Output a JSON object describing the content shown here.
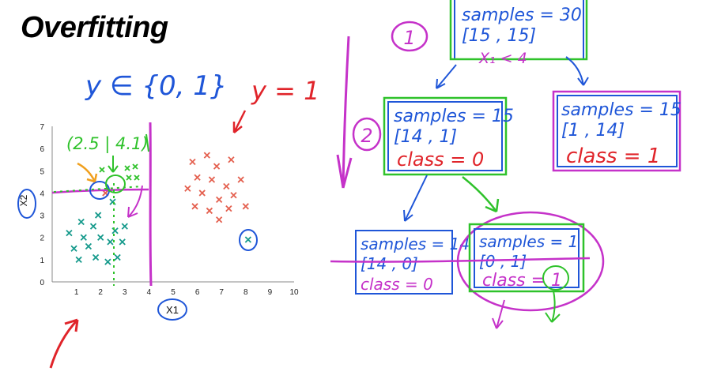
{
  "title": "Overfitting",
  "colors": {
    "blue": "#1f56d8",
    "green": "#2fc22b",
    "magenta": "#c532c9",
    "red": "#e0242a",
    "teal": "#169a8c",
    "salmon": "#e4604f",
    "orange": "#f0a01e"
  },
  "annotations": {
    "label_set": "y ∈ {0, 1}",
    "positive_label": "y = 1",
    "split_guess": "(2.5 | 4.1)",
    "step_one": "1",
    "step_two": "2",
    "split_feature": "X₁ < 4",
    "ax_x": "X1",
    "ax_y": "X2"
  },
  "tree": {
    "root": {
      "samples": "samples = 30",
      "counts": "[15 , 15]"
    },
    "left": {
      "samples": "samples = 15",
      "counts": "[14 , 1]",
      "class": "class = 0"
    },
    "right": {
      "samples": "samples = 15",
      "counts": "[1 , 14]",
      "class": "class = 1"
    },
    "leaf_left": {
      "samples": "samples = 14",
      "counts": "[14 , 0]",
      "class": "class = 0"
    },
    "leaf_right": {
      "samples": "samples = 1",
      "counts": "[0 , 1]",
      "class": "class = 1"
    }
  },
  "chart_data": {
    "type": "scatter",
    "xlim": [
      0,
      10
    ],
    "ylim": [
      0,
      7
    ],
    "xticks": [
      "1",
      "2",
      "3",
      "4",
      "5",
      "6",
      "7",
      "8",
      "9",
      "10"
    ],
    "yticks": [
      "0",
      "1",
      "2",
      "3",
      "4",
      "5",
      "6",
      "7"
    ],
    "series": [
      {
        "values": [
          [
            0.7,
            2.2
          ],
          [
            0.9,
            1.5
          ],
          [
            1.1,
            1.0
          ],
          [
            1.3,
            2.0
          ],
          [
            1.5,
            1.6
          ],
          [
            1.7,
            2.5
          ],
          [
            1.2,
            2.7
          ],
          [
            1.8,
            1.1
          ],
          [
            2.0,
            2.0
          ],
          [
            2.3,
            0.9
          ],
          [
            2.4,
            1.8
          ],
          [
            2.6,
            2.3
          ],
          [
            2.7,
            1.1
          ],
          [
            2.9,
            1.8
          ],
          [
            3.0,
            2.5
          ],
          [
            1.9,
            3.0
          ],
          [
            2.5,
            3.6
          ]
        ]
      },
      {
        "values": [
          [
            5.8,
            5.4
          ],
          [
            6.4,
            5.7
          ],
          [
            6.8,
            5.2
          ],
          [
            7.4,
            5.5
          ],
          [
            6.0,
            4.7
          ],
          [
            6.6,
            4.6
          ],
          [
            7.2,
            4.3
          ],
          [
            7.8,
            4.6
          ],
          [
            5.6,
            4.2
          ],
          [
            6.2,
            4.0
          ],
          [
            6.9,
            3.7
          ],
          [
            7.5,
            3.9
          ],
          [
            5.9,
            3.4
          ],
          [
            6.5,
            3.2
          ],
          [
            7.3,
            3.3
          ],
          [
            8.0,
            3.4
          ],
          [
            6.9,
            2.8
          ]
        ]
      },
      {
        "values": [
          [
            8.1,
            1.9
          ]
        ]
      },
      {
        "values": [
          [
            2.2,
            4.0
          ]
        ]
      }
    ]
  }
}
